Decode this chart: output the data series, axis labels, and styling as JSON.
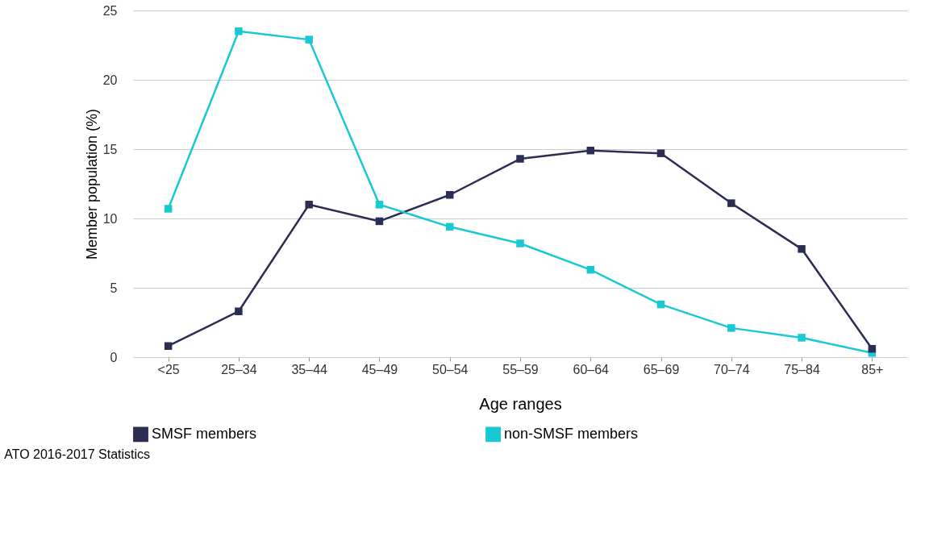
{
  "chart_data": {
    "type": "line",
    "xlabel": "Age ranges",
    "ylabel": "Member population (%)",
    "categories": [
      "<25",
      "25–34",
      "35–44",
      "45–49",
      "50–54",
      "55–59",
      "60–64",
      "65–69",
      "70–74",
      "75–84",
      "85+"
    ],
    "series": [
      {
        "name": "SMSF members",
        "color": "#2b2d52",
        "values": [
          0.8,
          3.3,
          11.0,
          9.8,
          11.7,
          14.3,
          14.9,
          14.7,
          11.1,
          7.8,
          0.6
        ]
      },
      {
        "name": "non-SMSF members",
        "color": "#18c8d2",
        "values": [
          10.7,
          23.5,
          22.9,
          11.0,
          9.4,
          8.2,
          6.3,
          3.8,
          2.1,
          1.4,
          0.3
        ]
      }
    ],
    "ylim": [
      0,
      25
    ],
    "yticks": [
      0,
      5,
      10,
      15,
      20,
      25
    ],
    "grid": "y",
    "legend": "bottom",
    "marker": "square",
    "line_style": "solid",
    "annotations": [
      "ATO 2016-2017 Statistics"
    ]
  }
}
